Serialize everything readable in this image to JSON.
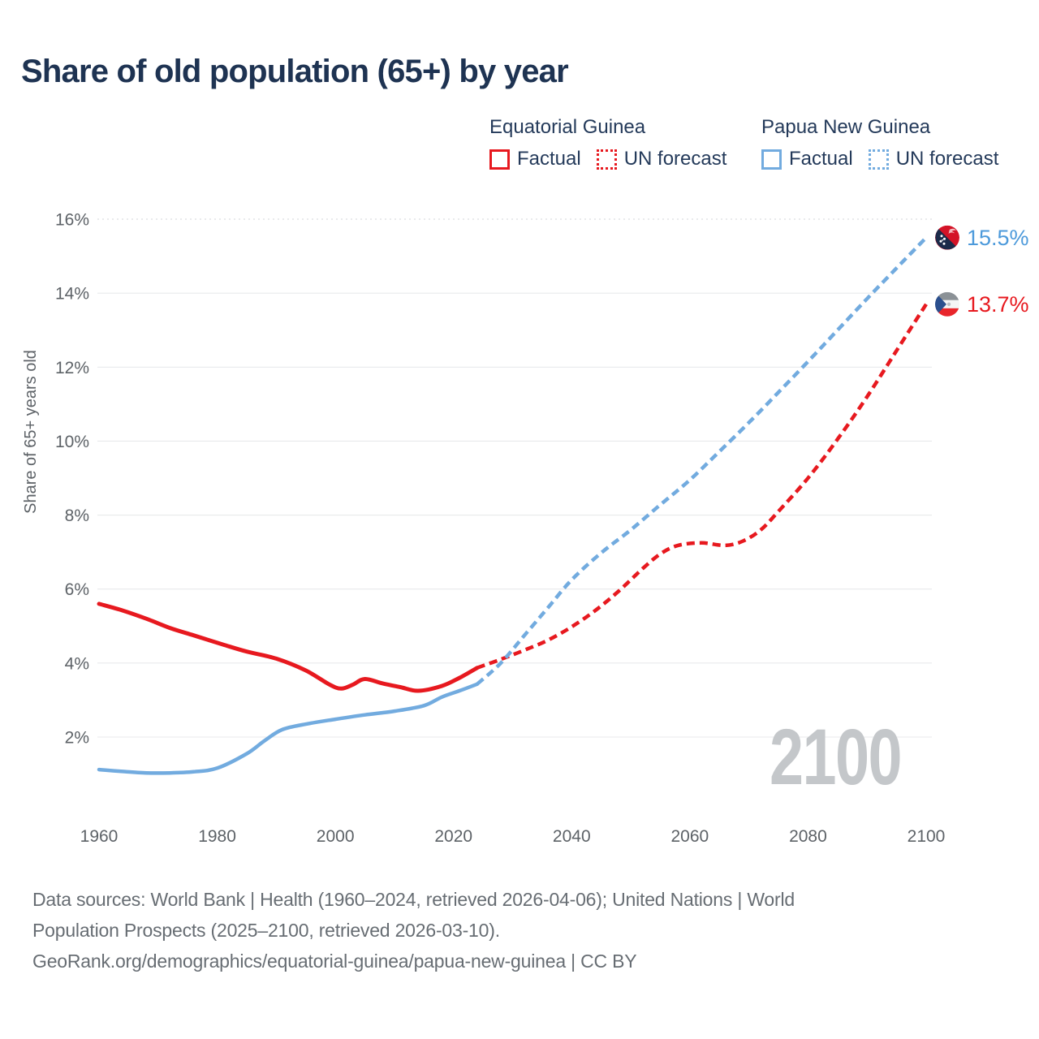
{
  "title": "Share of old population (65+) by year",
  "watermark": "2100",
  "legend": {
    "groups": [
      {
        "name": "Equatorial Guinea",
        "color": "#e7191f",
        "items": [
          {
            "label": "Factual",
            "style": "solid"
          },
          {
            "label": "UN forecast",
            "style": "dotted"
          }
        ]
      },
      {
        "name": "Papua New Guinea",
        "color": "#72abdf",
        "items": [
          {
            "label": "Factual",
            "style": "solid"
          },
          {
            "label": "UN forecast",
            "style": "dotted"
          }
        ]
      }
    ]
  },
  "footer": {
    "lines": [
      "Data sources: World Bank | Health (1960–2024, retrieved 2026-04-06); United Nations | World",
      "Population Prospects (2025–2100, retrieved 2026-03-10).",
      "GeoRank.org/demographics/equatorial-guinea/papua-new-guinea | CC BY"
    ]
  },
  "colors": {
    "title_text": "#1e3352",
    "legend_text": "#243a5a",
    "axis_text": "#5d6267",
    "gridline": "#e8eaeb",
    "gridline_top_dotted": "#d3d6d9",
    "watermark": "#c4c7ca",
    "footer_text": "#676d73",
    "eqg_line": "#e7191f",
    "png_line": "#72abdf",
    "png_label_text": "#4d9adb"
  },
  "chart_data": {
    "type": "line",
    "title": "Share of old population (65+) by year",
    "xlabel": "",
    "ylabel": "Share of 65+ years old",
    "x_axis": {
      "range": [
        1960,
        2100
      ],
      "ticks": [
        1960,
        1980,
        2000,
        2020,
        2040,
        2060,
        2080,
        2100
      ]
    },
    "y_axis": {
      "range": [
        0,
        16
      ],
      "ticks": [
        2,
        4,
        6,
        8,
        10,
        12,
        14,
        16
      ],
      "tick_suffix": "%",
      "grid": true
    },
    "legend_position": "top-right",
    "series": [
      {
        "name": "Equatorial Guinea — Factual",
        "color": "#e7191f",
        "dash": false,
        "width": 5,
        "points": [
          [
            1960,
            5.6
          ],
          [
            1964,
            5.42
          ],
          [
            1968,
            5.2
          ],
          [
            1972,
            4.95
          ],
          [
            1976,
            4.75
          ],
          [
            1981,
            4.5
          ],
          [
            1985,
            4.31
          ],
          [
            1990,
            4.12
          ],
          [
            1995,
            3.8
          ],
          [
            1999,
            3.42
          ],
          [
            2001,
            3.31
          ],
          [
            2003,
            3.42
          ],
          [
            2005,
            3.57
          ],
          [
            2008,
            3.45
          ],
          [
            2011,
            3.35
          ],
          [
            2014,
            3.25
          ],
          [
            2018,
            3.38
          ],
          [
            2021,
            3.6
          ],
          [
            2024,
            3.87
          ]
        ]
      },
      {
        "name": "Equatorial Guinea — UN forecast",
        "color": "#e7191f",
        "dash": true,
        "width": 4.5,
        "points": [
          [
            2024,
            3.87
          ],
          [
            2028,
            4.1
          ],
          [
            2032,
            4.35
          ],
          [
            2036,
            4.62
          ],
          [
            2040,
            4.98
          ],
          [
            2044,
            5.42
          ],
          [
            2048,
            5.95
          ],
          [
            2052,
            6.55
          ],
          [
            2055,
            6.95
          ],
          [
            2058,
            7.18
          ],
          [
            2062,
            7.25
          ],
          [
            2066,
            7.18
          ],
          [
            2069,
            7.3
          ],
          [
            2072,
            7.6
          ],
          [
            2075,
            8.1
          ],
          [
            2080,
            9.0
          ],
          [
            2085,
            10.05
          ],
          [
            2090,
            11.2
          ],
          [
            2095,
            12.45
          ],
          [
            2100,
            13.7
          ]
        ]
      },
      {
        "name": "Papua New Guinea — Factual",
        "color": "#72abdf",
        "dash": false,
        "width": 4.5,
        "points": [
          [
            1960,
            1.12
          ],
          [
            1964,
            1.07
          ],
          [
            1968,
            1.03
          ],
          [
            1972,
            1.03
          ],
          [
            1976,
            1.06
          ],
          [
            1980,
            1.16
          ],
          [
            1985,
            1.55
          ],
          [
            1988,
            1.9
          ],
          [
            1991,
            2.2
          ],
          [
            1995,
            2.35
          ],
          [
            2000,
            2.48
          ],
          [
            2005,
            2.6
          ],
          [
            2010,
            2.7
          ],
          [
            2015,
            2.85
          ],
          [
            2018,
            3.08
          ],
          [
            2021,
            3.25
          ],
          [
            2024,
            3.43
          ]
        ]
      },
      {
        "name": "Papua New Guinea — UN forecast",
        "color": "#72abdf",
        "dash": true,
        "width": 4.5,
        "points": [
          [
            2024,
            3.43
          ],
          [
            2028,
            4.0
          ],
          [
            2032,
            4.75
          ],
          [
            2036,
            5.5
          ],
          [
            2040,
            6.25
          ],
          [
            2045,
            6.98
          ],
          [
            2050,
            7.6
          ],
          [
            2055,
            8.28
          ],
          [
            2060,
            8.95
          ],
          [
            2065,
            9.72
          ],
          [
            2070,
            10.5
          ],
          [
            2075,
            11.32
          ],
          [
            2080,
            12.15
          ],
          [
            2085,
            13.0
          ],
          [
            2090,
            13.85
          ],
          [
            2095,
            14.68
          ],
          [
            2100,
            15.5
          ]
        ]
      }
    ],
    "end_annotations": [
      {
        "series": "Papua New Guinea",
        "flag": "papua-new-guinea",
        "value": 15.5,
        "label": "15.5%",
        "text_color": "#4d9adb"
      },
      {
        "series": "Equatorial Guinea",
        "flag": "equatorial-guinea",
        "value": 13.7,
        "label": "13.7%",
        "text_color": "#e7191f"
      }
    ],
    "flag_colors": {
      "papua_new_guinea": {
        "red": "#d41327",
        "black": "#1b2b4a",
        "bird": "#f2b9bd",
        "stars": "#ffffff"
      },
      "equatorial_guinea": {
        "top": "#8b9196",
        "middle": "#f4f5f6",
        "bottom": "#e8252b",
        "triangle": "#2b4f8e",
        "emblem": "#b9bec4"
      }
    }
  }
}
